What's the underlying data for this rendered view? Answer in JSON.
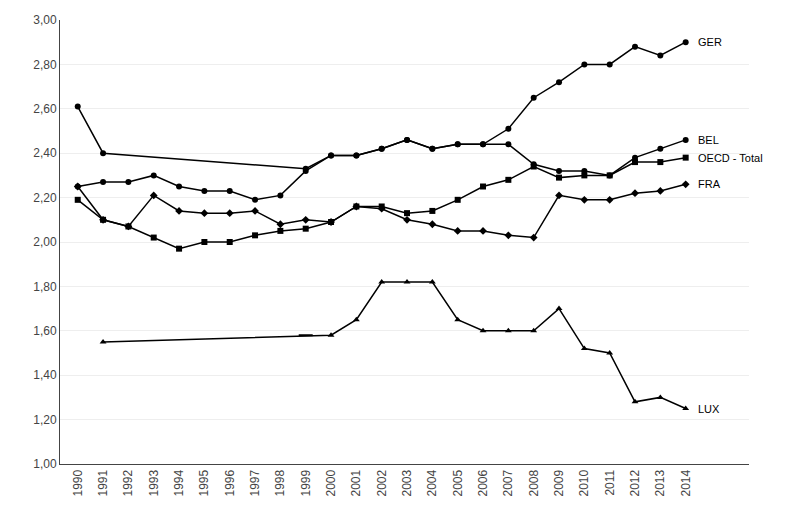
{
  "chart_data": {
    "type": "line",
    "color": "#000000",
    "grid": true,
    "xlim": [
      1989.3,
      2016.5
    ],
    "xticks": [
      1990,
      1991,
      1992,
      1993,
      1994,
      1995,
      1996,
      1997,
      1998,
      1999,
      2000,
      2001,
      2002,
      2003,
      2004,
      2005,
      2006,
      2007,
      2008,
      2009,
      2010,
      2011,
      2012,
      2013,
      2014
    ],
    "ylim": [
      1.0,
      3.0
    ],
    "yticks": [
      {
        "value": 1.0,
        "label": "1,00"
      },
      {
        "value": 1.2,
        "label": "1,20"
      },
      {
        "value": 1.4,
        "label": "1,40"
      },
      {
        "value": 1.6,
        "label": "1,60"
      },
      {
        "value": 1.8,
        "label": "1,80"
      },
      {
        "value": 2.0,
        "label": "2,00"
      },
      {
        "value": 2.2,
        "label": "2,20"
      },
      {
        "value": 2.4,
        "label": "2,40"
      },
      {
        "value": 2.6,
        "label": "2,60"
      },
      {
        "value": 2.8,
        "label": "2,80"
      },
      {
        "value": 3.0,
        "label": "3,00"
      }
    ],
    "series": [
      {
        "name": "GER",
        "marker": "circle",
        "x": [
          1990,
          1991,
          1999,
          2000,
          2001,
          2002,
          2003,
          2004,
          2005,
          2006,
          2007,
          2008,
          2009,
          2010,
          2011,
          2012,
          2013,
          2014
        ],
        "values": [
          2.61,
          2.4,
          2.33,
          2.39,
          2.39,
          2.42,
          2.46,
          2.42,
          2.44,
          2.44,
          2.51,
          2.65,
          2.72,
          2.8,
          2.8,
          2.88,
          2.84,
          2.9
        ]
      },
      {
        "name": "BEL",
        "marker": "circle",
        "x": [
          1990,
          1991,
          1992,
          1993,
          1994,
          1995,
          1996,
          1997,
          1998,
          1999,
          2000,
          2001,
          2002,
          2003,
          2004,
          2005,
          2006,
          2007,
          2008,
          2009,
          2010,
          2011,
          2012,
          2013,
          2014
        ],
        "values": [
          2.25,
          2.27,
          2.27,
          2.3,
          2.25,
          2.23,
          2.23,
          2.19,
          2.21,
          2.32,
          2.39,
          2.39,
          2.42,
          2.46,
          2.42,
          2.44,
          2.44,
          2.44,
          2.35,
          2.32,
          2.32,
          2.3,
          2.38,
          2.42,
          2.46
        ]
      },
      {
        "name": "OECD - Total",
        "marker": "square",
        "x": [
          1990,
          1991,
          1992,
          1993,
          1994,
          1995,
          1996,
          1997,
          1998,
          1999,
          2000,
          2001,
          2002,
          2003,
          2004,
          2005,
          2006,
          2007,
          2008,
          2009,
          2010,
          2011,
          2012,
          2013,
          2014
        ],
        "values": [
          2.19,
          2.1,
          2.07,
          2.02,
          1.97,
          2.0,
          2.0,
          2.03,
          2.05,
          2.06,
          2.09,
          2.16,
          2.16,
          2.13,
          2.14,
          2.19,
          2.25,
          2.28,
          2.34,
          2.29,
          2.3,
          2.3,
          2.36,
          2.36,
          2.38
        ]
      },
      {
        "name": "FRA",
        "marker": "diamond",
        "x": [
          1990,
          1991,
          1992,
          1993,
          1994,
          1995,
          1996,
          1997,
          1998,
          1999,
          2000,
          2001,
          2002,
          2003,
          2004,
          2005,
          2006,
          2007,
          2008,
          2009,
          2010,
          2011,
          2012,
          2013,
          2014
        ],
        "values": [
          2.25,
          2.1,
          2.07,
          2.21,
          2.14,
          2.13,
          2.13,
          2.14,
          2.08,
          2.1,
          2.09,
          2.16,
          2.15,
          2.1,
          2.08,
          2.05,
          2.05,
          2.03,
          2.02,
          2.21,
          2.19,
          2.19,
          2.22,
          2.23,
          2.26
        ]
      },
      {
        "name": "LUX",
        "marker": "triangle",
        "x": [
          1991,
          2000,
          2001,
          2002,
          2003,
          2004,
          2005,
          2006,
          2007,
          2008,
          2009,
          2010,
          2011,
          2012,
          2013,
          2014
        ],
        "values": [
          1.55,
          1.58,
          1.65,
          1.82,
          1.82,
          1.82,
          1.65,
          1.6,
          1.6,
          1.6,
          1.7,
          1.52,
          1.5,
          1.28,
          1.3,
          1.25
        ]
      },
      {
        "name": "LUX",
        "marker": "dash",
        "line_style": "none",
        "x": [
          1999
        ],
        "values": [
          1.58
        ]
      }
    ],
    "annotations": [
      {
        "text": "GER",
        "x": 2014,
        "y": 2.9
      },
      {
        "text": "BEL",
        "x": 2014,
        "y": 2.46
      },
      {
        "text": "OECD - Total",
        "x": 2014,
        "y": 2.38
      },
      {
        "text": "FRA",
        "x": 2014,
        "y": 2.26
      },
      {
        "text": "LUX",
        "x": 2014,
        "y": 1.25
      }
    ]
  }
}
